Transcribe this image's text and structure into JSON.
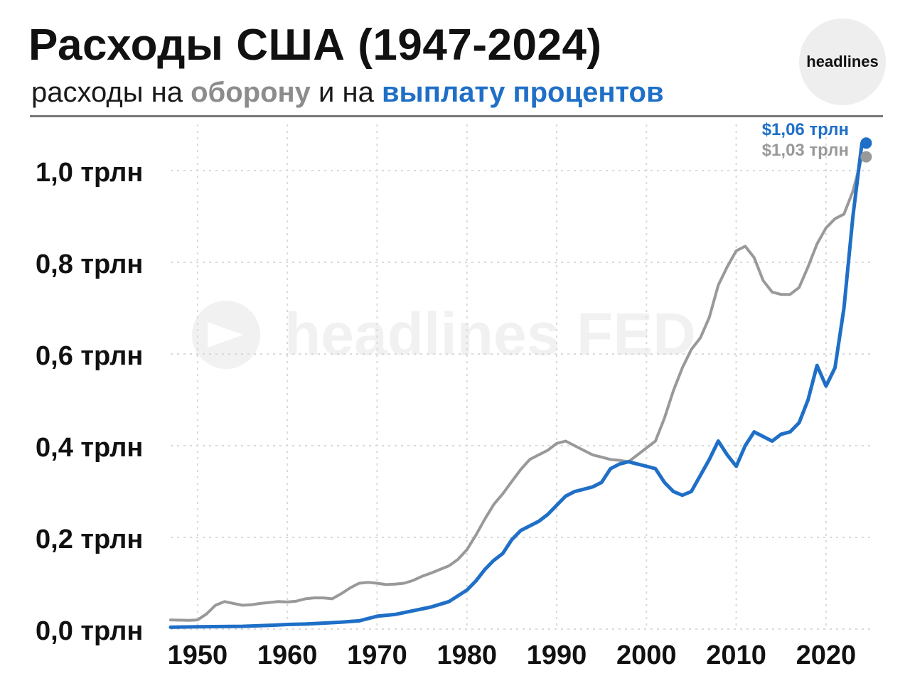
{
  "header": {
    "title": "Расходы США (1947-2024)",
    "subtitle_prefix": "расходы на ",
    "subtitle_defense": "оборону",
    "subtitle_middle": " и на ",
    "subtitle_interest": "выплату процентов",
    "logo_text": "headlines",
    "watermark_text": "headlines FED"
  },
  "colors": {
    "defense": "#999999",
    "interest": "#1f6fc7",
    "grid": "#d9d9d9"
  },
  "chart_data": {
    "type": "line",
    "title": "Расходы США (1947-2024)",
    "xlim": [
      1947,
      2025
    ],
    "ylim": [
      0,
      1.0
    ],
    "xticks": [
      {
        "value": 1950,
        "label": "1950"
      },
      {
        "value": 1960,
        "label": "1960"
      },
      {
        "value": 1970,
        "label": "1970"
      },
      {
        "value": 1980,
        "label": "1980"
      },
      {
        "value": 1990,
        "label": "1990"
      },
      {
        "value": 2000,
        "label": "2000"
      },
      {
        "value": 2010,
        "label": "2010"
      },
      {
        "value": 2020,
        "label": "2020"
      }
    ],
    "yticks": [
      {
        "value": 0.0,
        "label": "0,0 трлн"
      },
      {
        "value": 0.2,
        "label": "0,2 трлн"
      },
      {
        "value": 0.4,
        "label": "0,4 трлн"
      },
      {
        "value": 0.6,
        "label": "0,6 трлн"
      },
      {
        "value": 0.8,
        "label": "0,8 трлн"
      },
      {
        "value": 1.0,
        "label": "1,0 трлн"
      }
    ],
    "grid": true,
    "series": [
      {
        "name": "оборону",
        "color": "#999999",
        "end_label": "$1,03 трлн",
        "points": [
          [
            1947,
            0.02
          ],
          [
            1949,
            0.019
          ],
          [
            1950,
            0.02
          ],
          [
            1951,
            0.033
          ],
          [
            1952,
            0.052
          ],
          [
            1953,
            0.06
          ],
          [
            1954,
            0.056
          ],
          [
            1955,
            0.052
          ],
          [
            1956,
            0.053
          ],
          [
            1957,
            0.056
          ],
          [
            1958,
            0.058
          ],
          [
            1959,
            0.06
          ],
          [
            1960,
            0.059
          ],
          [
            1961,
            0.061
          ],
          [
            1962,
            0.066
          ],
          [
            1963,
            0.068
          ],
          [
            1964,
            0.068
          ],
          [
            1965,
            0.066
          ],
          [
            1966,
            0.077
          ],
          [
            1967,
            0.09
          ],
          [
            1968,
            0.1
          ],
          [
            1969,
            0.102
          ],
          [
            1970,
            0.1
          ],
          [
            1971,
            0.097
          ],
          [
            1972,
            0.098
          ],
          [
            1973,
            0.1
          ],
          [
            1974,
            0.106
          ],
          [
            1975,
            0.115
          ],
          [
            1976,
            0.122
          ],
          [
            1977,
            0.13
          ],
          [
            1978,
            0.138
          ],
          [
            1979,
            0.152
          ],
          [
            1980,
            0.173
          ],
          [
            1981,
            0.205
          ],
          [
            1982,
            0.24
          ],
          [
            1983,
            0.272
          ],
          [
            1984,
            0.295
          ],
          [
            1985,
            0.322
          ],
          [
            1986,
            0.348
          ],
          [
            1987,
            0.37
          ],
          [
            1988,
            0.38
          ],
          [
            1989,
            0.39
          ],
          [
            1990,
            0.405
          ],
          [
            1991,
            0.41
          ],
          [
            1992,
            0.4
          ],
          [
            1993,
            0.39
          ],
          [
            1994,
            0.38
          ],
          [
            1995,
            0.375
          ],
          [
            1996,
            0.37
          ],
          [
            1997,
            0.368
          ],
          [
            1998,
            0.365
          ],
          [
            1999,
            0.38
          ],
          [
            2000,
            0.395
          ],
          [
            2001,
            0.41
          ],
          [
            2002,
            0.46
          ],
          [
            2003,
            0.52
          ],
          [
            2004,
            0.57
          ],
          [
            2005,
            0.61
          ],
          [
            2006,
            0.635
          ],
          [
            2007,
            0.68
          ],
          [
            2008,
            0.75
          ],
          [
            2009,
            0.79
          ],
          [
            2010,
            0.825
          ],
          [
            2011,
            0.835
          ],
          [
            2012,
            0.81
          ],
          [
            2013,
            0.76
          ],
          [
            2014,
            0.735
          ],
          [
            2015,
            0.73
          ],
          [
            2016,
            0.73
          ],
          [
            2017,
            0.745
          ],
          [
            2018,
            0.79
          ],
          [
            2019,
            0.84
          ],
          [
            2020,
            0.875
          ],
          [
            2021,
            0.895
          ],
          [
            2022,
            0.905
          ],
          [
            2023,
            0.955
          ],
          [
            2024,
            1.03
          ]
        ]
      },
      {
        "name": "выплату процентов",
        "color": "#1f6fc7",
        "end_label": "$1,06 трлн",
        "points": [
          [
            1947,
            0.004
          ],
          [
            1950,
            0.005
          ],
          [
            1955,
            0.006
          ],
          [
            1958,
            0.008
          ],
          [
            1960,
            0.01
          ],
          [
            1962,
            0.011
          ],
          [
            1964,
            0.013
          ],
          [
            1966,
            0.015
          ],
          [
            1968,
            0.018
          ],
          [
            1970,
            0.028
          ],
          [
            1972,
            0.032
          ],
          [
            1974,
            0.04
          ],
          [
            1976,
            0.048
          ],
          [
            1978,
            0.06
          ],
          [
            1980,
            0.085
          ],
          [
            1981,
            0.105
          ],
          [
            1982,
            0.13
          ],
          [
            1983,
            0.15
          ],
          [
            1984,
            0.165
          ],
          [
            1985,
            0.195
          ],
          [
            1986,
            0.215
          ],
          [
            1987,
            0.225
          ],
          [
            1988,
            0.235
          ],
          [
            1989,
            0.25
          ],
          [
            1990,
            0.27
          ],
          [
            1991,
            0.29
          ],
          [
            1992,
            0.3
          ],
          [
            1993,
            0.305
          ],
          [
            1994,
            0.31
          ],
          [
            1995,
            0.32
          ],
          [
            1996,
            0.35
          ],
          [
            1997,
            0.36
          ],
          [
            1998,
            0.365
          ],
          [
            1999,
            0.36
          ],
          [
            2000,
            0.355
          ],
          [
            2001,
            0.35
          ],
          [
            2002,
            0.32
          ],
          [
            2003,
            0.3
          ],
          [
            2004,
            0.292
          ],
          [
            2005,
            0.3
          ],
          [
            2006,
            0.335
          ],
          [
            2007,
            0.37
          ],
          [
            2008,
            0.41
          ],
          [
            2009,
            0.38
          ],
          [
            2010,
            0.355
          ],
          [
            2011,
            0.4
          ],
          [
            2012,
            0.43
          ],
          [
            2013,
            0.42
          ],
          [
            2014,
            0.41
          ],
          [
            2015,
            0.425
          ],
          [
            2016,
            0.43
          ],
          [
            2017,
            0.45
          ],
          [
            2018,
            0.5
          ],
          [
            2019,
            0.575
          ],
          [
            2020,
            0.53
          ],
          [
            2021,
            0.57
          ],
          [
            2022,
            0.7
          ],
          [
            2023,
            0.9
          ],
          [
            2024,
            1.06
          ]
        ]
      }
    ]
  }
}
